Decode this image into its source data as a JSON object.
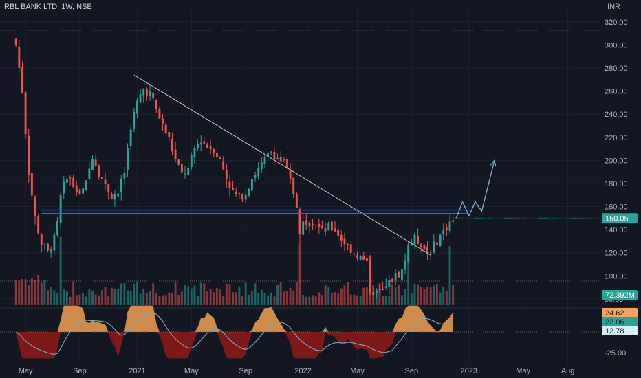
{
  "header": {
    "title": "RBL BANK LTD, 1W, NSE",
    "currency": "INR"
  },
  "colors": {
    "background": "#131722",
    "up": "#26a69a",
    "down": "#ef5350",
    "trendline": "#c8cbd2",
    "support": "#2962ff",
    "projection": "#7fb7d8",
    "tag_price": "#26a69a",
    "tag_volume": "#26a69a",
    "osc_area_up": "#f0a050",
    "osc_area_down": "#8b1a1a",
    "osc_signal": "#7da4b8"
  },
  "chart_data": [
    {
      "type": "candlestick",
      "symbol": "RBL BANK LTD",
      "interval": "1W",
      "exchange": "NSE",
      "y_axis": {
        "ticks": [
          80,
          100,
          120,
          140,
          160,
          180,
          200,
          220,
          240,
          260,
          280,
          300,
          320
        ],
        "tick_labels": [
          "80.00",
          "100.00",
          "120.00",
          "140.00",
          "160.00",
          "180.00",
          "200.00",
          "220.00",
          "240.00",
          "260.00",
          "280.00",
          "300.00",
          "320.00"
        ],
        "range": [
          74,
          330
        ]
      },
      "x_axis": {
        "labels": [
          "May",
          "Sep",
          "2021",
          "May",
          "Sep",
          "2022",
          "May",
          "Sep",
          "2023",
          "May",
          "Aug"
        ],
        "label_weeks": [
          3,
          20,
          38,
          55,
          72,
          90,
          107,
          124,
          142,
          159,
          173
        ],
        "range_weeks": [
          -5,
          183
        ]
      },
      "last_price": 150.05,
      "last_price_label": "150.05",
      "close_path": [
        {
          "w": 0,
          "c": 300
        },
        {
          "w": 2,
          "c": 260
        },
        {
          "w": 4,
          "c": 190
        },
        {
          "w": 6,
          "c": 150
        },
        {
          "w": 8,
          "c": 128
        },
        {
          "w": 10,
          "c": 120
        },
        {
          "w": 12,
          "c": 132
        },
        {
          "w": 13,
          "c": 145
        },
        {
          "w": 14,
          "c": 168
        },
        {
          "w": 16,
          "c": 188
        },
        {
          "w": 18,
          "c": 178
        },
        {
          "w": 20,
          "c": 168
        },
        {
          "w": 22,
          "c": 180
        },
        {
          "w": 24,
          "c": 205
        },
        {
          "w": 26,
          "c": 190
        },
        {
          "w": 28,
          "c": 178
        },
        {
          "w": 30,
          "c": 170
        },
        {
          "w": 32,
          "c": 172
        },
        {
          "w": 34,
          "c": 190
        },
        {
          "w": 36,
          "c": 230
        },
        {
          "w": 38,
          "c": 250
        },
        {
          "w": 40,
          "c": 262
        },
        {
          "w": 42,
          "c": 258
        },
        {
          "w": 44,
          "c": 244
        },
        {
          "w": 46,
          "c": 230
        },
        {
          "w": 48,
          "c": 218
        },
        {
          "w": 50,
          "c": 200
        },
        {
          "w": 52,
          "c": 188
        },
        {
          "w": 54,
          "c": 192
        },
        {
          "w": 56,
          "c": 210
        },
        {
          "w": 58,
          "c": 218
        },
        {
          "w": 60,
          "c": 212
        },
        {
          "w": 62,
          "c": 210
        },
        {
          "w": 64,
          "c": 200
        },
        {
          "w": 66,
          "c": 185
        },
        {
          "w": 68,
          "c": 172
        },
        {
          "w": 70,
          "c": 168
        },
        {
          "w": 72,
          "c": 172
        },
        {
          "w": 74,
          "c": 185
        },
        {
          "w": 76,
          "c": 192
        },
        {
          "w": 78,
          "c": 200
        },
        {
          "w": 80,
          "c": 208
        },
        {
          "w": 82,
          "c": 202
        },
        {
          "w": 84,
          "c": 198
        },
        {
          "w": 86,
          "c": 182
        },
        {
          "w": 88,
          "c": 162
        },
        {
          "w": 89,
          "c": 135
        },
        {
          "w": 90,
          "c": 146
        },
        {
          "w": 92,
          "c": 150
        },
        {
          "w": 94,
          "c": 146
        },
        {
          "w": 96,
          "c": 138
        },
        {
          "w": 98,
          "c": 142
        },
        {
          "w": 100,
          "c": 140
        },
        {
          "w": 102,
          "c": 132
        },
        {
          "w": 104,
          "c": 126
        },
        {
          "w": 106,
          "c": 120
        },
        {
          "w": 108,
          "c": 116
        },
        {
          "w": 110,
          "c": 110
        },
        {
          "w": 111,
          "c": 88
        },
        {
          "w": 113,
          "c": 85
        },
        {
          "w": 115,
          "c": 86
        },
        {
          "w": 117,
          "c": 94
        },
        {
          "w": 119,
          "c": 100
        },
        {
          "w": 121,
          "c": 104
        },
        {
          "w": 123,
          "c": 125
        },
        {
          "w": 125,
          "c": 132
        },
        {
          "w": 127,
          "c": 128
        },
        {
          "w": 129,
          "c": 120
        },
        {
          "w": 131,
          "c": 126
        },
        {
          "w": 133,
          "c": 135
        },
        {
          "w": 135,
          "c": 143
        },
        {
          "w": 137,
          "c": 150
        }
      ],
      "annotations": {
        "trendline": [
          {
            "w": 37,
            "p": 274
          },
          {
            "w": 130,
            "p": 118
          }
        ],
        "support_levels": [
          157,
          154
        ],
        "projection": [
          {
            "w": 138,
            "p": 150
          },
          {
            "w": 140,
            "p": 164
          },
          {
            "w": 142,
            "p": 152
          },
          {
            "w": 144,
            "p": 164
          },
          {
            "w": 146,
            "p": 156
          },
          {
            "w": 150,
            "p": 200
          }
        ]
      }
    },
    {
      "type": "bar",
      "name": "Volume",
      "last_label": "72.392M",
      "values_note": "weekly volume bars, colored by candle direction",
      "baseline_spikes_weeks": [
        14,
        89,
        111,
        123,
        136
      ]
    },
    {
      "type": "area",
      "name": "Oscillator",
      "y_axis": {
        "tick_labels": [
          "-25.00"
        ],
        "ticks": [
          -25
        ]
      },
      "tags": [
        {
          "label": "24.62",
          "value": 24.62
        },
        {
          "label": "22.06",
          "value": 22.06
        },
        {
          "label": "12.78",
          "value": 12.78
        }
      ]
    }
  ]
}
